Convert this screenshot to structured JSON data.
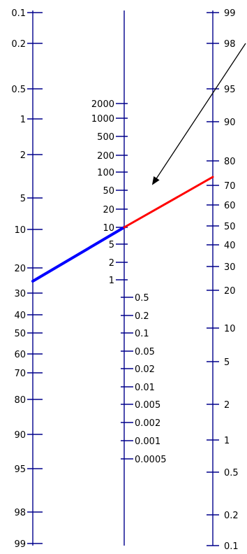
{
  "nomogram": {
    "colors": {
      "axis": "#00008b",
      "ticks": "#00008b",
      "line_left_segment": "#0000ff",
      "line_right_segment": "#ff0000",
      "arrow": "#000000"
    },
    "left_scale": {
      "labels": [
        "0.1",
        "0.2",
        "0.5",
        "1",
        "2",
        "5",
        "10",
        "20",
        "30",
        "40",
        "50",
        "60",
        "70",
        "80",
        "90",
        "95",
        "98",
        "99"
      ]
    },
    "middle_scale": {
      "upper_labels": [
        "2000",
        "1000",
        "500",
        "200",
        "100",
        "50",
        "20",
        "10",
        "5",
        "2",
        "1"
      ],
      "lower_labels": [
        "0.5",
        "0.2",
        "0.1",
        "0.05",
        "0.02",
        "0.01",
        "0.005",
        "0.002",
        "0.001",
        "0.0005"
      ]
    },
    "right_scale": {
      "labels": [
        "99",
        "98",
        "95",
        "90",
        "80",
        "70",
        "60",
        "50",
        "40",
        "30",
        "20",
        "10",
        "5",
        "2",
        "1",
        "0.5",
        "0.2",
        "0.1"
      ]
    },
    "example_line": {
      "left_value": "25",
      "middle_value": "10",
      "right_value": "75"
    },
    "annotation": {
      "arrow_icon": "diagonal-arrow-icon"
    }
  }
}
